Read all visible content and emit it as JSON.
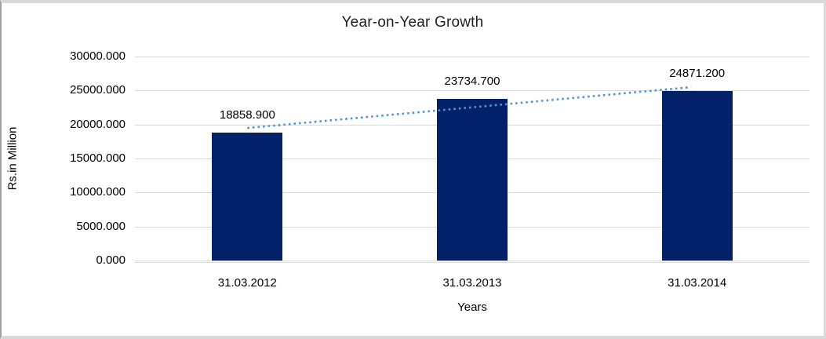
{
  "chart_data": {
    "type": "bar",
    "title": "Year-on-Year Growth",
    "xlabel": "Years",
    "ylabel": "Rs.in Million",
    "categories": [
      "31.03.2012",
      "31.03.2013",
      "31.03.2014"
    ],
    "values": [
      18858.9,
      23734.7,
      24871.2
    ],
    "value_labels": [
      "18858.900",
      "23734.700",
      "24871.200"
    ],
    "ylim": [
      0,
      30000
    ],
    "ytick_labels": [
      "0.000",
      "5000.000",
      "10000.000",
      "15000.000",
      "20000.000",
      "25000.000",
      "30000.000"
    ],
    "grid": true,
    "legend": "none",
    "bar_color": "#032169",
    "gridline_color": "#d9d9d9",
    "trendline": {
      "type": "linear",
      "style": "dotted",
      "color": "#4f93d9",
      "endpoint_values": [
        19482,
        25494
      ]
    }
  }
}
